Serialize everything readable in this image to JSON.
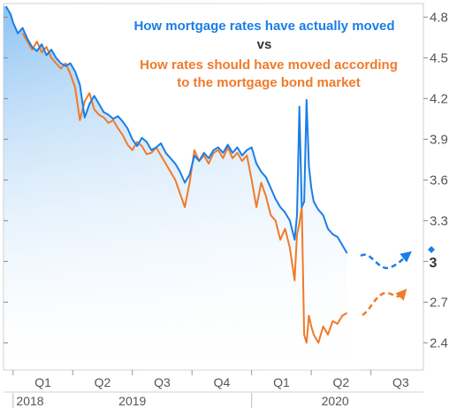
{
  "chart_data": {
    "type": "line",
    "title": "How mortgage rates have actually moved",
    "title_connector": "vs",
    "subtitle_line1": "How rates should have moved according",
    "subtitle_line2": "to the mortgage bond market",
    "ylim": [
      2.2,
      4.9
    ],
    "y_ticks": [
      "4.8",
      "4.5",
      "4.2",
      "3.9",
      "3.6",
      "3.3",
      "3",
      "2.7",
      "2.4"
    ],
    "y_tick_values": [
      4.8,
      4.5,
      4.2,
      3.9,
      3.6,
      3.3,
      3.0,
      2.7,
      2.4
    ],
    "x_quarter_labels": [
      "Q1",
      "Q2",
      "Q3",
      "Q4",
      "Q1",
      "Q2",
      "Q3"
    ],
    "x_quarter_positions": [
      2019.125,
      2019.375,
      2019.625,
      2019.875,
      2020.125,
      2020.375,
      2020.625
    ],
    "x_year_labels": [
      "2018",
      "2019",
      "2020"
    ],
    "current_marker_label": "3",
    "colors": {
      "actual": "#1a7ee6",
      "bond_market": "#f07a2a",
      "fill_top": "#8dc3f2"
    },
    "series": [
      {
        "name": "How mortgage rates have actually moved",
        "x": [
          2018.97,
          2018.99,
          2019.0,
          2019.02,
          2019.04,
          2019.06,
          2019.08,
          2019.1,
          2019.12,
          2019.14,
          2019.16,
          2019.18,
          2019.2,
          2019.22,
          2019.24,
          2019.26,
          2019.28,
          2019.3,
          2019.32,
          2019.34,
          2019.36,
          2019.38,
          2019.4,
          2019.42,
          2019.44,
          2019.46,
          2019.48,
          2019.5,
          2019.52,
          2019.54,
          2019.56,
          2019.58,
          2019.6,
          2019.62,
          2019.64,
          2019.66,
          2019.68,
          2019.7,
          2019.72,
          2019.74,
          2019.76,
          2019.78,
          2019.8,
          2019.82,
          2019.84,
          2019.86,
          2019.88,
          2019.9,
          2019.92,
          2019.94,
          2019.96,
          2019.98,
          2020.0,
          2020.02,
          2020.04,
          2020.06,
          2020.08,
          2020.1,
          2020.12,
          2020.14,
          2020.16,
          2020.18,
          2020.19,
          2020.2,
          2020.21,
          2020.22,
          2020.23,
          2020.24,
          2020.25,
          2020.26,
          2020.28,
          2020.3,
          2020.32,
          2020.34,
          2020.36,
          2020.38,
          2020.4
        ],
        "values": [
          4.88,
          4.82,
          4.76,
          4.68,
          4.72,
          4.64,
          4.58,
          4.55,
          4.6,
          4.52,
          4.56,
          4.5,
          4.46,
          4.44,
          4.46,
          4.4,
          4.3,
          4.06,
          4.16,
          4.22,
          4.16,
          4.1,
          4.08,
          4.05,
          4.07,
          4.03,
          3.98,
          3.9,
          3.85,
          3.91,
          3.88,
          3.82,
          3.84,
          3.87,
          3.8,
          3.76,
          3.72,
          3.66,
          3.58,
          3.64,
          3.78,
          3.74,
          3.8,
          3.76,
          3.82,
          3.84,
          3.8,
          3.86,
          3.8,
          3.84,
          3.78,
          3.82,
          3.84,
          3.72,
          3.66,
          3.62,
          3.54,
          3.46,
          3.4,
          3.36,
          3.3,
          3.16,
          3.34,
          4.14,
          3.4,
          3.44,
          4.19,
          3.7,
          3.54,
          3.44,
          3.38,
          3.34,
          3.24,
          3.2,
          3.18,
          3.12,
          3.06
        ]
      },
      {
        "name": "How rates should have moved according to the mortgage bond market",
        "x": [
          2019.04,
          2019.06,
          2019.08,
          2019.1,
          2019.12,
          2019.14,
          2019.16,
          2019.18,
          2019.2,
          2019.22,
          2019.24,
          2019.26,
          2019.28,
          2019.3,
          2019.32,
          2019.34,
          2019.36,
          2019.38,
          2019.4,
          2019.42,
          2019.44,
          2019.46,
          2019.48,
          2019.5,
          2019.52,
          2019.54,
          2019.56,
          2019.58,
          2019.6,
          2019.62,
          2019.64,
          2019.66,
          2019.68,
          2019.7,
          2019.72,
          2019.74,
          2019.76,
          2019.78,
          2019.8,
          2019.82,
          2019.84,
          2019.86,
          2019.88,
          2019.9,
          2019.92,
          2019.94,
          2019.96,
          2019.98,
          2020.0,
          2020.02,
          2020.04,
          2020.06,
          2020.08,
          2020.1,
          2020.12,
          2020.14,
          2020.16,
          2020.18,
          2020.19,
          2020.2,
          2020.21,
          2020.22,
          2020.23,
          2020.24,
          2020.25,
          2020.26,
          2020.28,
          2020.3,
          2020.32,
          2020.34,
          2020.36,
          2020.38,
          2020.4
        ],
        "values": [
          4.68,
          4.62,
          4.56,
          4.62,
          4.54,
          4.58,
          4.5,
          4.46,
          4.42,
          4.46,
          4.38,
          4.28,
          4.04,
          4.18,
          4.24,
          4.12,
          4.08,
          4.06,
          4.02,
          4.04,
          3.98,
          3.93,
          3.86,
          3.82,
          3.88,
          3.85,
          3.79,
          3.8,
          3.84,
          3.78,
          3.72,
          3.66,
          3.6,
          3.5,
          3.4,
          3.58,
          3.82,
          3.74,
          3.78,
          3.72,
          3.8,
          3.82,
          3.76,
          3.84,
          3.76,
          3.8,
          3.74,
          3.78,
          3.6,
          3.4,
          3.58,
          3.48,
          3.34,
          3.3,
          3.16,
          3.24,
          3.1,
          2.86,
          3.2,
          3.28,
          3.4,
          2.46,
          2.4,
          2.6,
          2.52,
          2.46,
          2.4,
          2.52,
          2.46,
          2.56,
          2.54,
          2.6,
          2.62
        ]
      }
    ],
    "projection_notes": "dashed arrows indicate projected paths after the last data point"
  }
}
